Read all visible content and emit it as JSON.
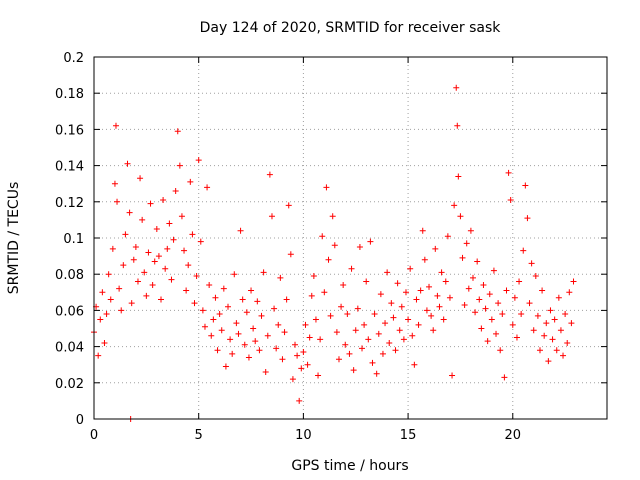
{
  "chart_data": {
    "type": "scatter",
    "title": "Day 124 of 2020, SRMTID for receiver sask",
    "xlabel": "GPS time / hours",
    "ylabel": "SRMTID / TECUs",
    "xlim": [
      0,
      24.5
    ],
    "ylim": [
      0,
      0.2
    ],
    "xticks": [
      0,
      5,
      10,
      15,
      20
    ],
    "xtick_labels": [
      "0",
      "5",
      "10",
      "15",
      "20"
    ],
    "yticks": [
      0,
      0.02,
      0.04,
      0.06,
      0.08,
      0.1,
      0.12,
      0.14,
      0.16,
      0.18,
      0.2
    ],
    "ytick_labels": [
      "0",
      "0.02",
      "0.04",
      "0.06",
      "0.08",
      "0.1",
      "0.12",
      "0.14",
      "0.16",
      "0.18",
      "0.2"
    ],
    "grid": true,
    "marker": "+",
    "series": [
      {
        "name": "sask",
        "color": "#ff0000",
        "points": [
          [
            0.0,
            0.048
          ],
          [
            0.1,
            0.062
          ],
          [
            0.2,
            0.035
          ],
          [
            0.3,
            0.055
          ],
          [
            0.4,
            0.07
          ],
          [
            0.5,
            0.042
          ],
          [
            0.6,
            0.058
          ],
          [
            0.7,
            0.08
          ],
          [
            0.8,
            0.066
          ],
          [
            0.9,
            0.094
          ],
          [
            1.0,
            0.13
          ],
          [
            1.05,
            0.162
          ],
          [
            1.1,
            0.12
          ],
          [
            1.2,
            0.072
          ],
          [
            1.3,
            0.06
          ],
          [
            1.4,
            0.085
          ],
          [
            1.5,
            0.102
          ],
          [
            1.6,
            0.141
          ],
          [
            1.7,
            0.114
          ],
          [
            1.75,
            0.0
          ],
          [
            1.8,
            0.064
          ],
          [
            1.9,
            0.088
          ],
          [
            2.0,
            0.095
          ],
          [
            2.1,
            0.076
          ],
          [
            2.2,
            0.133
          ],
          [
            2.3,
            0.11
          ],
          [
            2.4,
            0.081
          ],
          [
            2.5,
            0.068
          ],
          [
            2.6,
            0.092
          ],
          [
            2.7,
            0.119
          ],
          [
            2.8,
            0.074
          ],
          [
            2.9,
            0.087
          ],
          [
            3.0,
            0.105
          ],
          [
            3.1,
            0.09
          ],
          [
            3.2,
            0.066
          ],
          [
            3.3,
            0.121
          ],
          [
            3.4,
            0.083
          ],
          [
            3.5,
            0.094
          ],
          [
            3.6,
            0.108
          ],
          [
            3.7,
            0.077
          ],
          [
            3.8,
            0.099
          ],
          [
            3.9,
            0.126
          ],
          [
            4.0,
            0.159
          ],
          [
            4.1,
            0.14
          ],
          [
            4.2,
            0.112
          ],
          [
            4.3,
            0.093
          ],
          [
            4.4,
            0.071
          ],
          [
            4.5,
            0.085
          ],
          [
            4.6,
            0.131
          ],
          [
            4.7,
            0.102
          ],
          [
            4.8,
            0.064
          ],
          [
            4.9,
            0.079
          ],
          [
            5.0,
            0.143
          ],
          [
            5.1,
            0.098
          ],
          [
            5.2,
            0.06
          ],
          [
            5.3,
            0.051
          ],
          [
            5.4,
            0.128
          ],
          [
            5.5,
            0.074
          ],
          [
            5.6,
            0.046
          ],
          [
            5.7,
            0.055
          ],
          [
            5.8,
            0.067
          ],
          [
            5.9,
            0.038
          ],
          [
            6.0,
            0.058
          ],
          [
            6.1,
            0.049
          ],
          [
            6.2,
            0.072
          ],
          [
            6.3,
            0.029
          ],
          [
            6.4,
            0.062
          ],
          [
            6.5,
            0.044
          ],
          [
            6.6,
            0.036
          ],
          [
            6.7,
            0.08
          ],
          [
            6.8,
            0.053
          ],
          [
            6.9,
            0.047
          ],
          [
            7.0,
            0.104
          ],
          [
            7.1,
            0.066
          ],
          [
            7.2,
            0.041
          ],
          [
            7.3,
            0.059
          ],
          [
            7.4,
            0.034
          ],
          [
            7.5,
            0.071
          ],
          [
            7.6,
            0.05
          ],
          [
            7.7,
            0.043
          ],
          [
            7.8,
            0.065
          ],
          [
            7.9,
            0.038
          ],
          [
            8.0,
            0.057
          ],
          [
            8.1,
            0.081
          ],
          [
            8.2,
            0.026
          ],
          [
            8.3,
            0.046
          ],
          [
            8.4,
            0.135
          ],
          [
            8.5,
            0.112
          ],
          [
            8.6,
            0.061
          ],
          [
            8.7,
            0.039
          ],
          [
            8.8,
            0.052
          ],
          [
            8.9,
            0.078
          ],
          [
            9.0,
            0.033
          ],
          [
            9.1,
            0.048
          ],
          [
            9.2,
            0.066
          ],
          [
            9.3,
            0.118
          ],
          [
            9.4,
            0.091
          ],
          [
            9.5,
            0.022
          ],
          [
            9.6,
            0.041
          ],
          [
            9.7,
            0.035
          ],
          [
            9.8,
            0.01
          ],
          [
            9.9,
            0.028
          ],
          [
            10.0,
            0.037
          ],
          [
            10.1,
            0.052
          ],
          [
            10.2,
            0.03
          ],
          [
            10.3,
            0.045
          ],
          [
            10.4,
            0.068
          ],
          [
            10.5,
            0.079
          ],
          [
            10.6,
            0.055
          ],
          [
            10.7,
            0.024
          ],
          [
            10.8,
            0.044
          ],
          [
            10.9,
            0.101
          ],
          [
            11.0,
            0.07
          ],
          [
            11.1,
            0.128
          ],
          [
            11.2,
            0.088
          ],
          [
            11.3,
            0.057
          ],
          [
            11.4,
            0.112
          ],
          [
            11.5,
            0.096
          ],
          [
            11.6,
            0.048
          ],
          [
            11.7,
            0.033
          ],
          [
            11.8,
            0.062
          ],
          [
            11.9,
            0.074
          ],
          [
            12.0,
            0.041
          ],
          [
            12.1,
            0.058
          ],
          [
            12.2,
            0.036
          ],
          [
            12.3,
            0.083
          ],
          [
            12.4,
            0.027
          ],
          [
            12.5,
            0.049
          ],
          [
            12.6,
            0.061
          ],
          [
            12.7,
            0.095
          ],
          [
            12.8,
            0.039
          ],
          [
            12.9,
            0.052
          ],
          [
            13.0,
            0.076
          ],
          [
            13.1,
            0.044
          ],
          [
            13.2,
            0.098
          ],
          [
            13.3,
            0.031
          ],
          [
            13.4,
            0.058
          ],
          [
            13.5,
            0.025
          ],
          [
            13.6,
            0.047
          ],
          [
            13.7,
            0.069
          ],
          [
            13.8,
            0.036
          ],
          [
            13.9,
            0.053
          ],
          [
            14.0,
            0.081
          ],
          [
            14.1,
            0.042
          ],
          [
            14.2,
            0.064
          ],
          [
            14.3,
            0.056
          ],
          [
            14.4,
            0.038
          ],
          [
            14.5,
            0.075
          ],
          [
            14.6,
            0.049
          ],
          [
            14.7,
            0.062
          ],
          [
            14.8,
            0.044
          ],
          [
            14.9,
            0.07
          ],
          [
            15.0,
            0.055
          ],
          [
            15.1,
            0.083
          ],
          [
            15.2,
            0.046
          ],
          [
            15.3,
            0.03
          ],
          [
            15.4,
            0.066
          ],
          [
            15.5,
            0.052
          ],
          [
            15.6,
            0.071
          ],
          [
            15.7,
            0.104
          ],
          [
            15.8,
            0.088
          ],
          [
            15.9,
            0.06
          ],
          [
            16.0,
            0.073
          ],
          [
            16.1,
            0.057
          ],
          [
            16.2,
            0.049
          ],
          [
            16.3,
            0.094
          ],
          [
            16.4,
            0.068
          ],
          [
            16.5,
            0.062
          ],
          [
            16.6,
            0.081
          ],
          [
            16.7,
            0.055
          ],
          [
            16.8,
            0.076
          ],
          [
            16.9,
            0.101
          ],
          [
            17.0,
            0.067
          ],
          [
            17.1,
            0.024
          ],
          [
            17.2,
            0.118
          ],
          [
            17.3,
            0.183
          ],
          [
            17.35,
            0.162
          ],
          [
            17.4,
            0.134
          ],
          [
            17.5,
            0.112
          ],
          [
            17.6,
            0.089
          ],
          [
            17.7,
            0.063
          ],
          [
            17.8,
            0.097
          ],
          [
            17.9,
            0.072
          ],
          [
            18.0,
            0.104
          ],
          [
            18.1,
            0.078
          ],
          [
            18.2,
            0.059
          ],
          [
            18.3,
            0.087
          ],
          [
            18.4,
            0.066
          ],
          [
            18.5,
            0.05
          ],
          [
            18.6,
            0.074
          ],
          [
            18.7,
            0.061
          ],
          [
            18.8,
            0.043
          ],
          [
            18.9,
            0.069
          ],
          [
            19.0,
            0.055
          ],
          [
            19.1,
            0.082
          ],
          [
            19.2,
            0.047
          ],
          [
            19.3,
            0.064
          ],
          [
            19.4,
            0.038
          ],
          [
            19.5,
            0.058
          ],
          [
            19.6,
            0.023
          ],
          [
            19.7,
            0.071
          ],
          [
            19.8,
            0.136
          ],
          [
            19.9,
            0.121
          ],
          [
            20.0,
            0.052
          ],
          [
            20.1,
            0.067
          ],
          [
            20.2,
            0.045
          ],
          [
            20.3,
            0.076
          ],
          [
            20.4,
            0.058
          ],
          [
            20.5,
            0.093
          ],
          [
            20.6,
            0.129
          ],
          [
            20.7,
            0.111
          ],
          [
            20.8,
            0.064
          ],
          [
            20.9,
            0.086
          ],
          [
            21.0,
            0.049
          ],
          [
            21.1,
            0.079
          ],
          [
            21.2,
            0.057
          ],
          [
            21.3,
            0.038
          ],
          [
            21.4,
            0.071
          ],
          [
            21.5,
            0.046
          ],
          [
            21.6,
            0.053
          ],
          [
            21.7,
            0.032
          ],
          [
            21.8,
            0.06
          ],
          [
            21.9,
            0.044
          ],
          [
            22.0,
            0.055
          ],
          [
            22.1,
            0.038
          ],
          [
            22.2,
            0.067
          ],
          [
            22.3,
            0.049
          ],
          [
            22.4,
            0.035
          ],
          [
            22.5,
            0.058
          ],
          [
            22.6,
            0.042
          ],
          [
            22.7,
            0.07
          ],
          [
            22.8,
            0.053
          ],
          [
            22.9,
            0.076
          ]
        ]
      }
    ]
  }
}
